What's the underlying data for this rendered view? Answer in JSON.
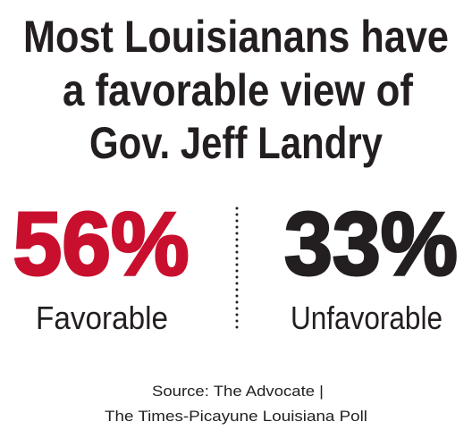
{
  "header": {
    "title_lines": [
      "Most Louisianans have",
      "a favorable view of",
      "Gov. Jeff Landry"
    ]
  },
  "stats": [
    {
      "value": "56%",
      "label": "Favorable",
      "color": "#c8102e"
    },
    {
      "value": "33%",
      "label": "Unfavorable",
      "color": "#231f20"
    }
  ],
  "source_lines": [
    "Source: The Advocate  |",
    "The Times-Picayune Louisiana Poll"
  ]
}
